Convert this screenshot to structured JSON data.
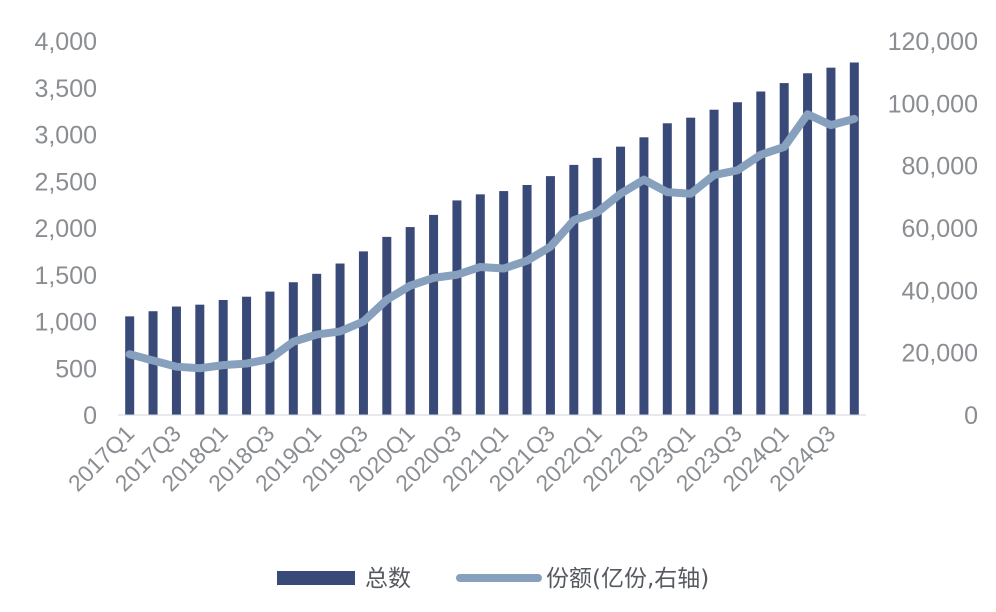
{
  "chart_data": {
    "type": "bar",
    "categories": [
      "2017Q1",
      "2017Q2",
      "2017Q3",
      "2017Q4",
      "2018Q1",
      "2018Q2",
      "2018Q3",
      "2018Q4",
      "2019Q1",
      "2019Q2",
      "2019Q3",
      "2019Q4",
      "2020Q1",
      "2020Q2",
      "2020Q3",
      "2020Q4",
      "2021Q1",
      "2021Q2",
      "2021Q3",
      "2021Q4",
      "2022Q1",
      "2022Q2",
      "2022Q3",
      "2022Q4",
      "2023Q1",
      "2023Q2",
      "2023Q3",
      "2023Q4",
      "2024Q1",
      "2024Q2",
      "2024Q3",
      "2024Q4"
    ],
    "x_tick_labels": [
      "2017Q1",
      "2017Q3",
      "2018Q1",
      "2018Q3",
      "2019Q1",
      "2019Q3",
      "2020Q1",
      "2020Q3",
      "2021Q1",
      "2021Q3",
      "2022Q1",
      "2022Q3",
      "2023Q1",
      "2023Q3",
      "2024Q1",
      "2024Q3"
    ],
    "series": [
      {
        "name": "总数",
        "type": "bar",
        "axis": "left",
        "color": "#3a4a78",
        "values": [
          1055,
          1110,
          1160,
          1180,
          1230,
          1265,
          1320,
          1420,
          1510,
          1620,
          1750,
          1905,
          2010,
          2140,
          2295,
          2360,
          2395,
          2460,
          2555,
          2675,
          2750,
          2870,
          2970,
          3120,
          3180,
          3265,
          3345,
          3460,
          3550,
          3655,
          3715,
          3770
        ]
      },
      {
        "name": "份额(亿份,右轴)",
        "type": "line",
        "axis": "right",
        "color": "#86a0bd",
        "values": [
          19500,
          17500,
          15500,
          15000,
          16000,
          16500,
          18000,
          23500,
          25800,
          26800,
          30000,
          37000,
          41500,
          44000,
          45000,
          47500,
          47000,
          49500,
          54000,
          62500,
          65000,
          71000,
          75500,
          71500,
          71000,
          77000,
          78500,
          83500,
          86000,
          96500,
          93000,
          95000
        ]
      }
    ],
    "y_left": {
      "ylim": [
        0,
        4000
      ],
      "ticks": [
        0,
        500,
        1000,
        1500,
        2000,
        2500,
        3000,
        3500,
        4000
      ],
      "tick_labels": [
        "0",
        "500",
        "1,000",
        "1,500",
        "2,000",
        "2,500",
        "3,000",
        "3,500",
        "4,000"
      ]
    },
    "y_right": {
      "ylim": [
        0,
        120000
      ],
      "ticks": [
        0,
        20000,
        40000,
        60000,
        80000,
        100000,
        120000
      ],
      "tick_labels": [
        "0",
        "20,000",
        "40,000",
        "60,000",
        "80,000",
        "100,000",
        "120,000"
      ]
    },
    "grid": false,
    "legend_position": "bottom-center",
    "legend": [
      {
        "label": "总数",
        "kind": "bar",
        "color": "#3a4a78"
      },
      {
        "label": "份额(亿份,右轴)",
        "kind": "line",
        "color": "#86a0bd"
      }
    ]
  }
}
